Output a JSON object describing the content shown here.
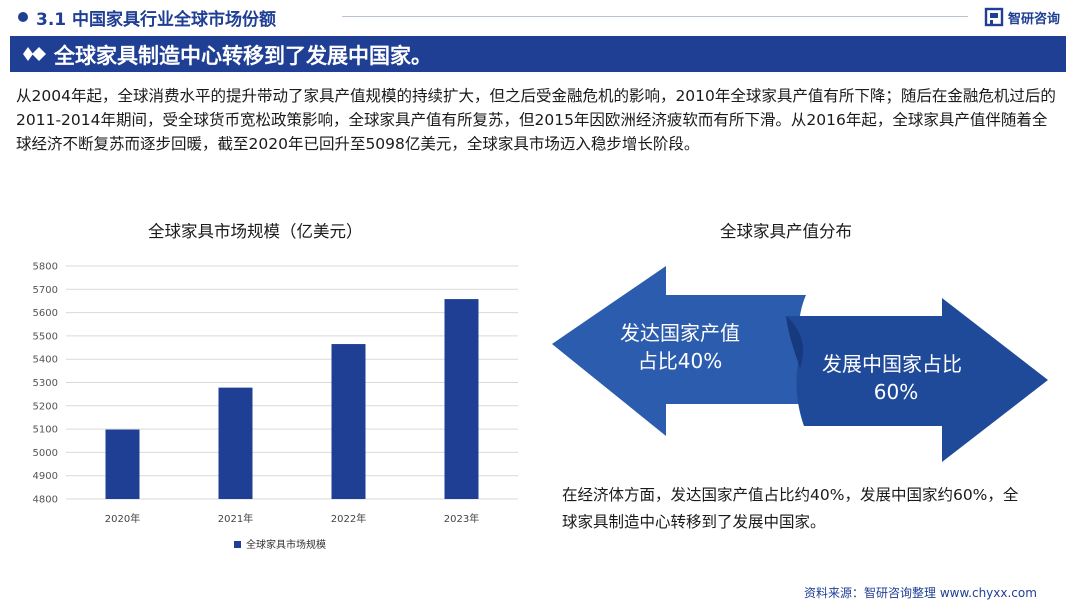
{
  "header": {
    "section_title": "3.1 中国家具行业全球市场份额",
    "brand_name": "智研咨询"
  },
  "headline": "全球家具制造中心转移到了发展中国家。",
  "intro_text": "从2004年起，全球消费水平的提升带动了家具产值规模的持续扩大，但之后受金融危机的影响，2010年全球家具产值有所下降；随后在金融危机过后的2011-2014年期间，受全球货币宽松政策影响，全球家具产值有所复苏，但2015年因欧洲经济疲软而有所下滑。从2016年起，全球家具产值伴随着全球经济不断复苏而逐步回暖，截至2020年已回升至5098亿美元，全球家具市场迈入稳步增长阶段。",
  "distribution": {
    "title": "全球家具产值分布",
    "developed_line1": "发达国家产值",
    "developed_line2": "占比40%",
    "developing_line1": "发展中国家占比",
    "developing_line2": "60%",
    "note": "在经济体方面，发达国家产值占比约40%，发展中国家约60%，全球家具制造中心转移到了发展中国家。"
  },
  "source": "资料来源：智研咨询整理 www.chyxx.com",
  "colors": {
    "brand_blue": "#1f3f94",
    "bar_color": "#1f3f94",
    "arrow_left": "#2c5cad",
    "arrow_right": "#1f4a9a"
  },
  "chart_data": {
    "type": "bar",
    "title": "全球家具市场规模（亿美元）",
    "categories": [
      "2020年",
      "2021年",
      "2022年",
      "2023年"
    ],
    "series": [
      {
        "name": "全球家具市场规模",
        "values": [
          5098,
          5278,
          5465,
          5658
        ]
      }
    ],
    "ylim": [
      4800,
      5800
    ],
    "yticks": [
      4800,
      4900,
      5000,
      5100,
      5200,
      5300,
      5400,
      5500,
      5600,
      5700,
      5800
    ],
    "grid": true,
    "legend": "bottom"
  }
}
